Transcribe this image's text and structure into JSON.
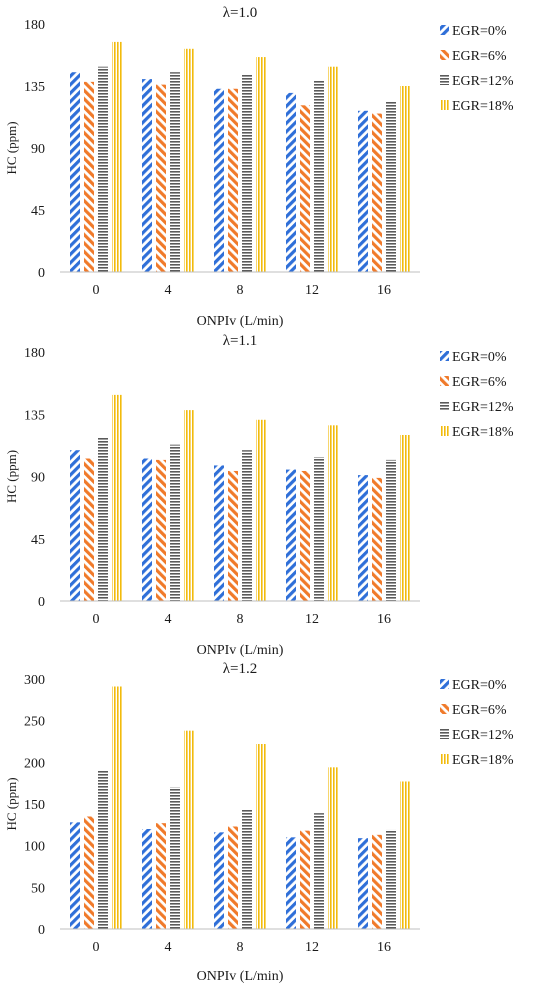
{
  "colors": {
    "EGR=0%": "#2f6fd8",
    "EGR=6%": "#f07a2a",
    "EGR=12%": "#5a5a5a",
    "EGR=18%": "#f2bb0c"
  },
  "chart_data": [
    {
      "type": "bar",
      "title": "λ=1.0",
      "xlabel": "ONPIv (L/min)",
      "ylabel": "HC (ppm)",
      "categories": [
        "0",
        "4",
        "8",
        "12",
        "16"
      ],
      "ylim": [
        0,
        180
      ],
      "yticks": [
        0,
        45,
        90,
        135,
        180
      ],
      "grid": false,
      "legend": "right",
      "series": [
        {
          "name": "EGR=0%",
          "pattern": "diag-right",
          "values": [
            145,
            140,
            133,
            130,
            117
          ]
        },
        {
          "name": "EGR=6%",
          "pattern": "diag-left",
          "values": [
            138,
            136,
            133,
            121,
            115
          ]
        },
        {
          "name": "EGR=12%",
          "pattern": "horizontal",
          "values": [
            149,
            145,
            143,
            139,
            124
          ]
        },
        {
          "name": "EGR=18%",
          "pattern": "vertical",
          "values": [
            167,
            162,
            156,
            149,
            135
          ]
        }
      ]
    },
    {
      "type": "bar",
      "title": "λ=1.1",
      "xlabel": "ONPIv (L/min)",
      "ylabel": "HC (ppm)",
      "categories": [
        "0",
        "4",
        "8",
        "12",
        "16"
      ],
      "ylim": [
        0,
        180
      ],
      "yticks": [
        0,
        45,
        90,
        135,
        180
      ],
      "grid": false,
      "legend": "right",
      "series": [
        {
          "name": "EGR=0%",
          "pattern": "diag-right",
          "values": [
            109,
            103,
            98,
            95,
            91
          ]
        },
        {
          "name": "EGR=6%",
          "pattern": "diag-left",
          "values": [
            103,
            102,
            94,
            94,
            89
          ]
        },
        {
          "name": "EGR=12%",
          "pattern": "horizontal",
          "values": [
            118,
            113,
            109,
            104,
            102
          ]
        },
        {
          "name": "EGR=18%",
          "pattern": "vertical",
          "values": [
            149,
            138,
            131,
            127,
            120
          ]
        }
      ]
    },
    {
      "type": "bar",
      "title": "λ=1.2",
      "xlabel": "ONPIv (L/min)",
      "ylabel": "HC (ppm)",
      "categories": [
        "0",
        "4",
        "8",
        "12",
        "16"
      ],
      "ylim": [
        0,
        300
      ],
      "yticks": [
        0,
        50,
        100,
        150,
        200,
        250,
        300
      ],
      "grid": false,
      "legend": "right",
      "series": [
        {
          "name": "EGR=0%",
          "pattern": "diag-right",
          "values": [
            128,
            120,
            116,
            110,
            109
          ]
        },
        {
          "name": "EGR=6%",
          "pattern": "diag-left",
          "values": [
            135,
            127,
            123,
            118,
            113
          ]
        },
        {
          "name": "EGR=12%",
          "pattern": "horizontal",
          "values": [
            190,
            170,
            143,
            139,
            119
          ]
        },
        {
          "name": "EGR=18%",
          "pattern": "vertical",
          "values": [
            291,
            238,
            222,
            194,
            177
          ]
        }
      ]
    }
  ]
}
